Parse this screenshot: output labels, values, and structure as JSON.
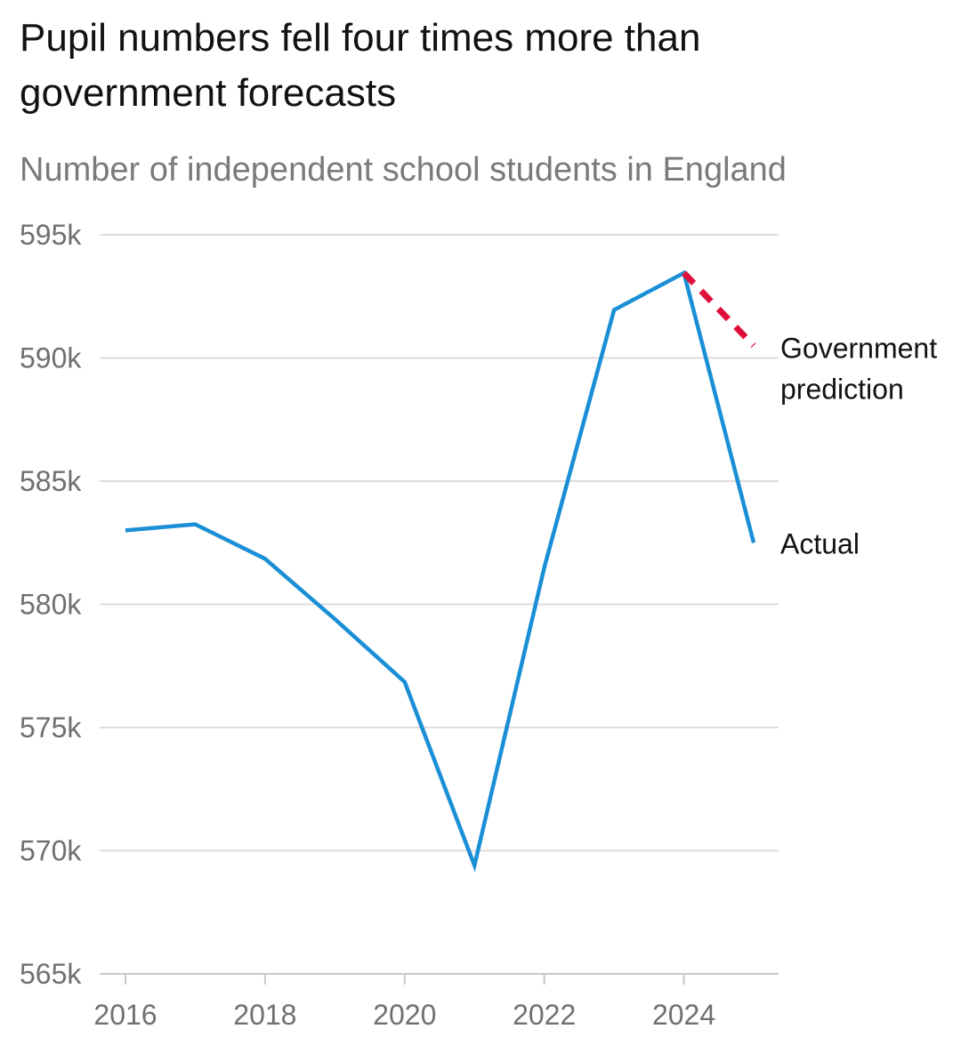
{
  "chart_data": {
    "type": "line",
    "title": "Pupil numbers fell four times more than government forecasts",
    "subtitle": "Number of independent school students in England",
    "xlabel": "",
    "ylabel": "",
    "x_ticks": [
      "2016",
      "2018",
      "2020",
      "2022",
      "2024"
    ],
    "x_tick_values": [
      2016,
      2018,
      2020,
      2022,
      2024
    ],
    "y_ticks": [
      "565k",
      "570k",
      "575k",
      "580k",
      "585k",
      "590k",
      "595k"
    ],
    "y_tick_values": [
      565000,
      570000,
      575000,
      580000,
      585000,
      590000,
      595000
    ],
    "xlim": [
      2016,
      2025
    ],
    "ylim": [
      565000,
      595000
    ],
    "grid": "horizontal",
    "series": [
      {
        "name": "Actual",
        "style": "solid",
        "color": "#1a8fd6",
        "x": [
          2016,
          2017,
          2018,
          2019,
          2020,
          2021,
          2022,
          2023,
          2024,
          2025
        ],
        "values": [
          583000,
          583250,
          581850,
          579400,
          576850,
          569400,
          581500,
          591950,
          593450,
          582500
        ]
      },
      {
        "name": "Government prediction",
        "label_lines": [
          "Government",
          "prediction"
        ],
        "style": "dashed",
        "color": "#e0103a",
        "x": [
          2024,
          2025
        ],
        "values": [
          593450,
          590500
        ]
      }
    ]
  }
}
